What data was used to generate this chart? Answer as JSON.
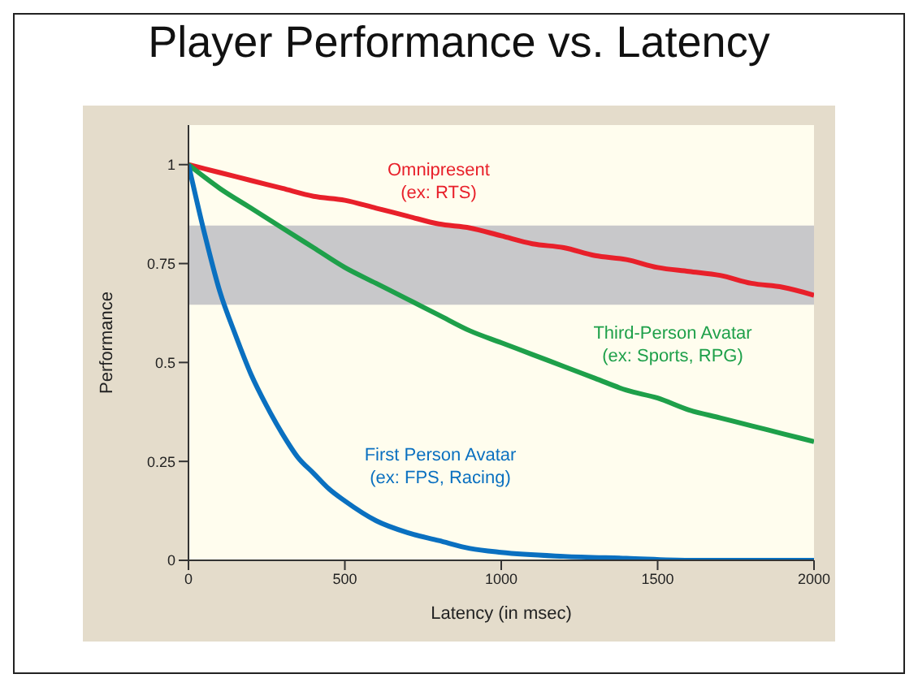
{
  "chart_data": {
    "type": "line",
    "title": "Player Performance vs. Latency",
    "xlabel": "Latency (in msec)",
    "ylabel": "Performance",
    "xlim": [
      0,
      2000
    ],
    "xticks": [
      0,
      500,
      1000,
      1500,
      2000
    ],
    "ylim": [
      0,
      1.1
    ],
    "yticks": [
      0,
      0.25,
      0.5,
      0.75,
      {
        "value": 1,
        "label": "1"
      }
    ],
    "grid": false,
    "legend": false,
    "marker": "none",
    "line_style": "solid",
    "bands": [
      {
        "axis": "y",
        "from": 0.646,
        "to": 0.846,
        "color": "#c8c8ca"
      }
    ],
    "series": [
      {
        "name": "Omnipresent\n(ex: RTS)",
        "color": "#e8202a",
        "x": [
          0,
          100,
          200,
          300,
          400,
          500,
          600,
          700,
          800,
          900,
          1000,
          1100,
          1200,
          1300,
          1400,
          1500,
          1600,
          1700,
          1800,
          1900,
          2000
        ],
        "values": [
          1,
          0.98,
          0.96,
          0.94,
          0.92,
          0.91,
          0.89,
          0.87,
          0.85,
          0.84,
          0.82,
          0.8,
          0.79,
          0.77,
          0.76,
          0.74,
          0.73,
          0.72,
          0.7,
          0.69,
          0.67
        ]
      },
      {
        "name": "Third-Person Avatar\n(ex: Sports, RPG)",
        "color": "#1ea04a",
        "x": [
          0,
          100,
          200,
          300,
          400,
          500,
          600,
          700,
          800,
          900,
          1000,
          1100,
          1200,
          1300,
          1400,
          1500,
          1600,
          1700,
          1800,
          1900,
          2000
        ],
        "values": [
          1,
          0.94,
          0.89,
          0.84,
          0.79,
          0.74,
          0.7,
          0.66,
          0.62,
          0.58,
          0.55,
          0.52,
          0.49,
          0.46,
          0.43,
          0.41,
          0.38,
          0.36,
          0.34,
          0.32,
          0.3
        ]
      },
      {
        "name": "First Person Avatar\n(ex: FPS, Racing)",
        "color": "#0a70c0",
        "x": [
          0,
          50,
          100,
          150,
          200,
          250,
          300,
          350,
          400,
          450,
          500,
          600,
          700,
          800,
          900,
          1000,
          1200,
          1400,
          1600,
          1800,
          2000
        ],
        "values": [
          1,
          0.83,
          0.68,
          0.57,
          0.47,
          0.39,
          0.32,
          0.26,
          0.22,
          0.18,
          0.15,
          0.1,
          0.07,
          0.05,
          0.03,
          0.02,
          0.01,
          0.005,
          0,
          0,
          0
        ]
      }
    ]
  }
}
